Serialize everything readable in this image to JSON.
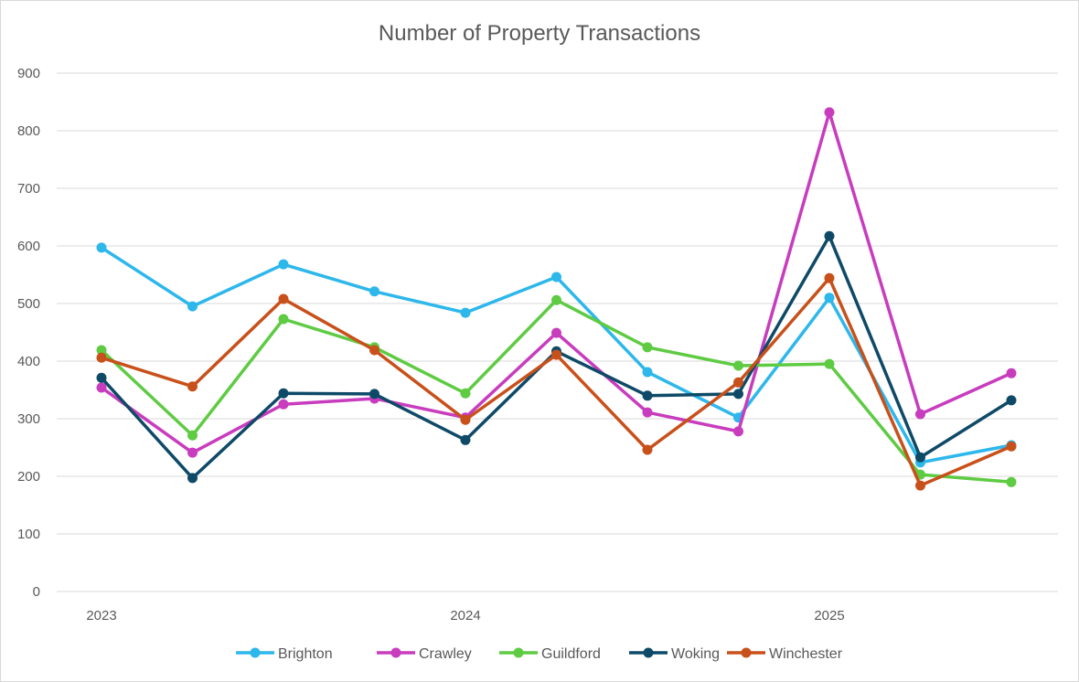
{
  "chart_data": {
    "type": "line",
    "title": "Number of Property Transactions",
    "xlabel": "",
    "ylabel": "",
    "ylim": [
      0,
      900
    ],
    "yticks": [
      0,
      100,
      200,
      300,
      400,
      500,
      600,
      700,
      800,
      900
    ],
    "grid": true,
    "legend": "bottom",
    "x_tick_labels": [
      "2023",
      "",
      "",
      "",
      "2024",
      "",
      "",
      "",
      "2025",
      "",
      ""
    ],
    "series": [
      {
        "name": "Brighton",
        "color": "#2DB7EB",
        "values": [
          597,
          495,
          568,
          521,
          484,
          546,
          381,
          302,
          510,
          224,
          254
        ]
      },
      {
        "name": "Crawley",
        "color": "#C83CBE",
        "values": [
          354,
          241,
          325,
          335,
          302,
          449,
          311,
          278,
          832,
          308,
          379
        ]
      },
      {
        "name": "Guildford",
        "color": "#5ECB43",
        "values": [
          419,
          271,
          473,
          424,
          344,
          506,
          424,
          392,
          395,
          203,
          190
        ]
      },
      {
        "name": "Woking",
        "color": "#0E4A67",
        "values": [
          371,
          197,
          344,
          343,
          263,
          417,
          340,
          343,
          617,
          233,
          332
        ]
      },
      {
        "name": "Winchester",
        "color": "#C8501A",
        "values": [
          406,
          356,
          508,
          419,
          298,
          411,
          246,
          363,
          544,
          184,
          252
        ]
      }
    ]
  }
}
